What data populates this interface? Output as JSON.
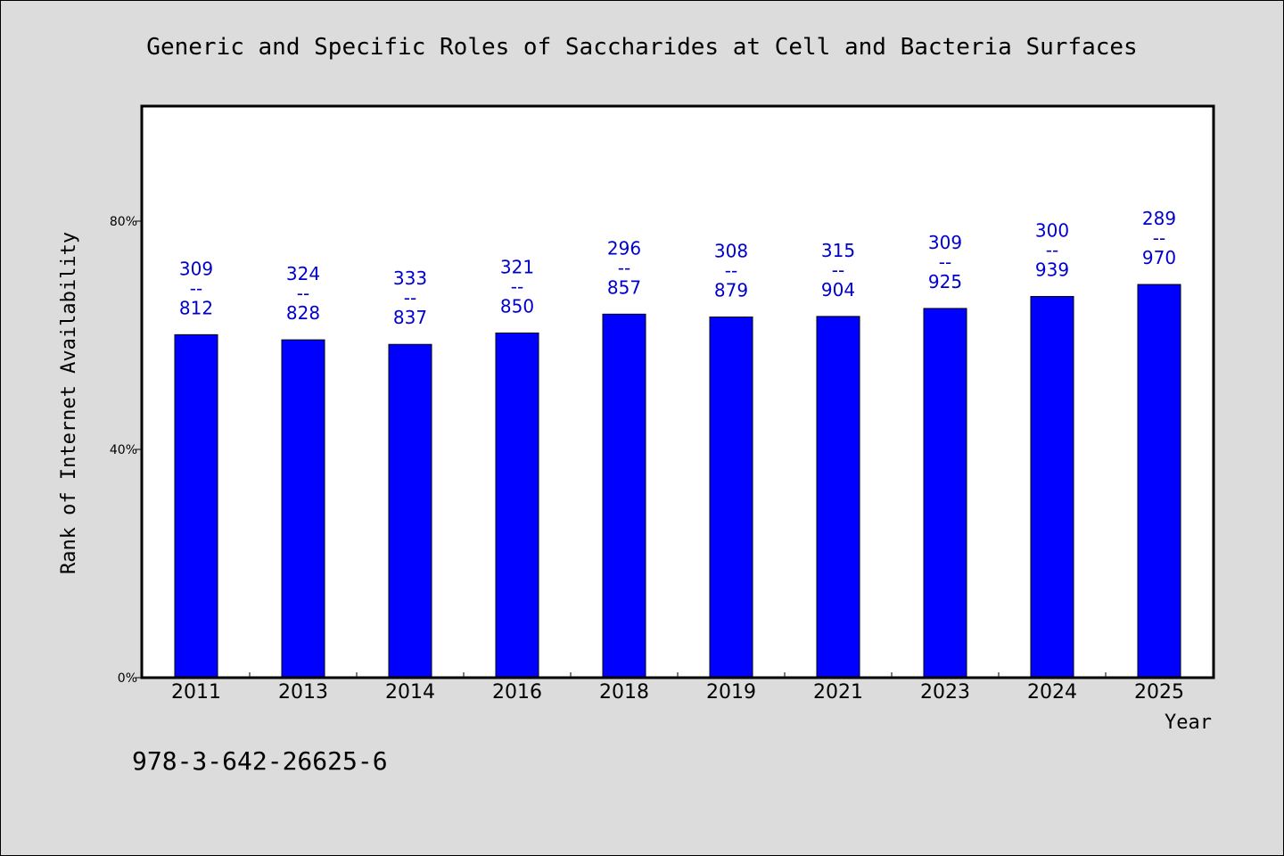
{
  "chart_data": {
    "type": "bar",
    "title": "Generic and Specific Roles of Saccharides at Cell and Bacteria Surfaces",
    "xlabel": "Year",
    "ylabel": "Rank of Internet Availability",
    "categories": [
      "2011",
      "2013",
      "2014",
      "2016",
      "2018",
      "2019",
      "2021",
      "2023",
      "2024",
      "2025"
    ],
    "values": [
      60.1,
      59.2,
      58.4,
      60.4,
      63.7,
      63.2,
      63.3,
      64.7,
      66.8,
      68.9
    ],
    "bar_labels": [
      {
        "top": "309",
        "mid": "--",
        "bottom": "812"
      },
      {
        "top": "324",
        "mid": "--",
        "bottom": "828"
      },
      {
        "top": "333",
        "mid": "--",
        "bottom": "837"
      },
      {
        "top": "321",
        "mid": "--",
        "bottom": "850"
      },
      {
        "top": "296",
        "mid": "--",
        "bottom": "857"
      },
      {
        "top": "308",
        "mid": "--",
        "bottom": "879"
      },
      {
        "top": "315",
        "mid": "--",
        "bottom": "904"
      },
      {
        "top": "309",
        "mid": "--",
        "bottom": "925"
      },
      {
        "top": "300",
        "mid": "--",
        "bottom": "939"
      },
      {
        "top": "289",
        "mid": "--",
        "bottom": "970"
      }
    ],
    "yticks": [
      0,
      40,
      80
    ],
    "ytick_labels": [
      "0%",
      "40%",
      "80%"
    ],
    "ylim": [
      0,
      100
    ],
    "grid": false,
    "bar_color": "#0000ff",
    "label_color": "#0000cc"
  },
  "footer": {
    "isbn": "978-3-642-26625-6"
  }
}
